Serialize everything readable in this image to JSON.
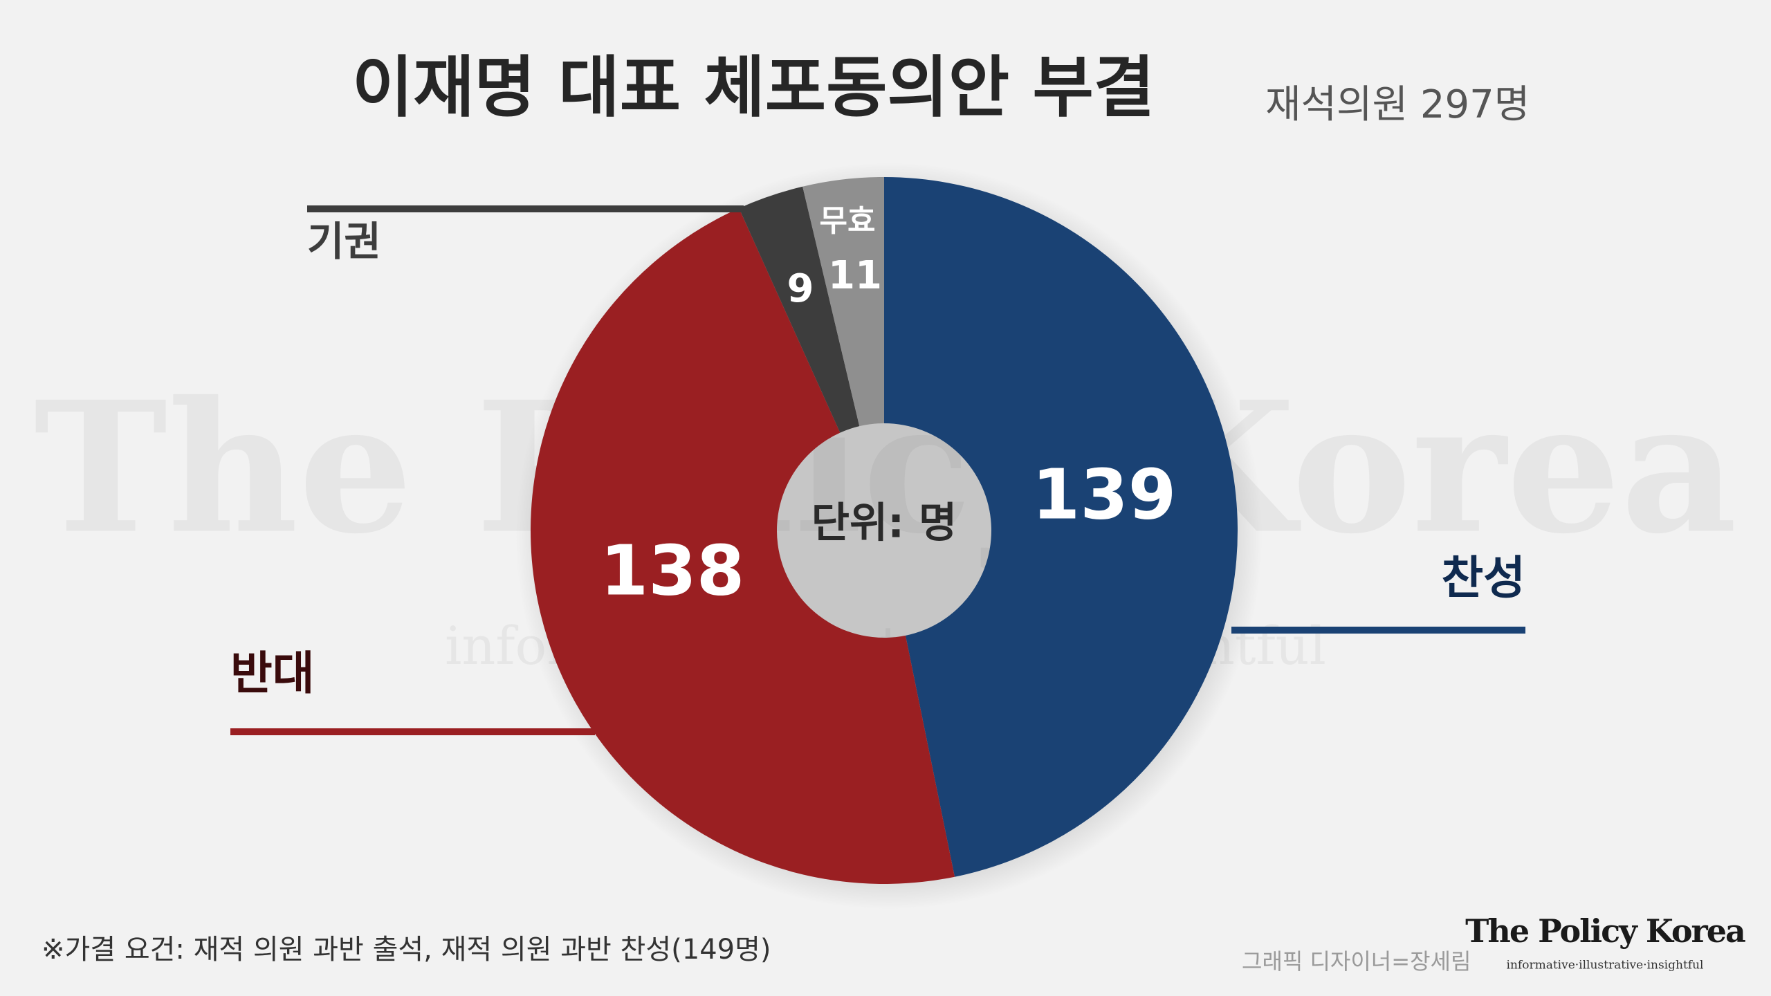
{
  "chart_data": {
    "type": "donut",
    "title": "이재명 대표 체포동의안 부결",
    "subtitle": "재석의원 297명",
    "center_label": "단위: 명",
    "categories": [
      "찬성",
      "반대",
      "기권",
      "무효"
    ],
    "values": [
      139,
      138,
      9,
      11
    ],
    "colors": [
      "#1a4274",
      "#9a1f22",
      "#3d3d3d",
      "#8f8f8f"
    ]
  },
  "footnote": "※가결 요건: 재적 의원 과반 출석, 재적 의원 과반 찬성(149명)",
  "credit": "그래픽 디자이너=장세림",
  "brand": {
    "name": "The Policy Korea",
    "tagline": "informative·illustrative·insightful"
  }
}
